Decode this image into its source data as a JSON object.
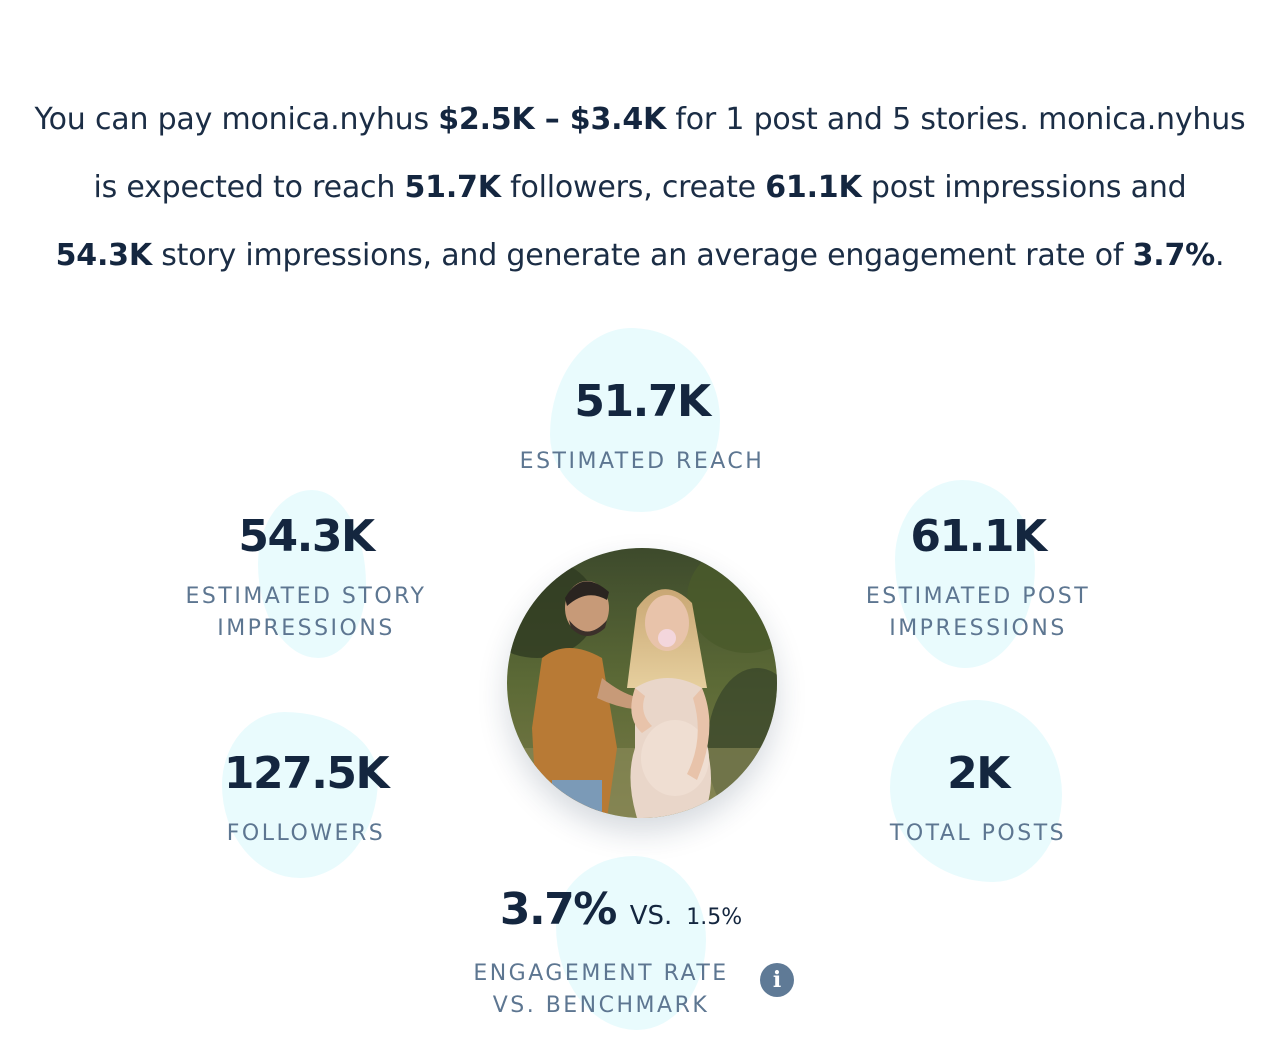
{
  "summary": {
    "l1_a": "You can pay monica.nyhus ",
    "l1_b": "$2.5K – $3.4K",
    "l1_c": " for 1 post and 5 stories. monica.nyhus",
    "l2_a": "is expected to reach ",
    "l2_b": "51.7K",
    "l2_c": " followers, create ",
    "l2_d": "61.1K",
    "l2_e": " post impressions and",
    "l3_a": "54.3K",
    "l3_b": " story impressions, and generate an average engagement rate of ",
    "l3_c": "3.7%",
    "l3_d": "."
  },
  "stats": {
    "reach": {
      "value": "51.7K",
      "label": "ESTIMATED REACH"
    },
    "story_impressions": {
      "value": "54.3K",
      "label_1": "ESTIMATED STORY",
      "label_2": "IMPRESSIONS"
    },
    "post_impressions": {
      "value": "61.1K",
      "label_1": "ESTIMATED POST",
      "label_2": "IMPRESSIONS"
    },
    "followers": {
      "value": "127.5K",
      "label": "FOLLOWERS"
    },
    "total_posts": {
      "value": "2K",
      "label": "TOTAL POSTS"
    },
    "engagement": {
      "value": "3.7%",
      "vs_word": "VS.",
      "benchmark": "1.5%",
      "label_1": "ENGAGEMENT RATE",
      "label_2": "VS. BENCHMARK",
      "info_icon": "info-icon"
    }
  },
  "colors": {
    "text_dark": "#14263f",
    "label_gray": "#5d7691",
    "blob": "#e9fbfd",
    "info_badge": "#5f7a96"
  }
}
